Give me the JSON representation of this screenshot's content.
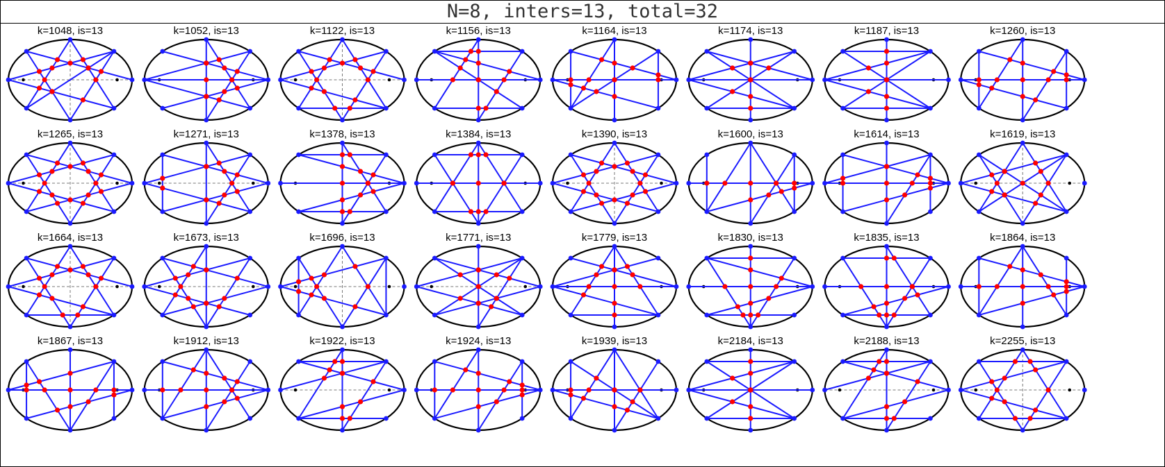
{
  "title": "N=8, inters=13, total=32",
  "panels": [
    {
      "label": "k=1048, is=13"
    },
    {
      "label": "k=1052, is=13"
    },
    {
      "label": "k=1122, is=13"
    },
    {
      "label": "k=1156, is=13"
    },
    {
      "label": "k=1164, is=13"
    },
    {
      "label": "k=1174, is=13"
    },
    {
      "label": "k=1187, is=13"
    },
    {
      "label": "k=1260, is=13"
    },
    {
      "label": "k=1265, is=13"
    },
    {
      "label": "k=1271, is=13"
    },
    {
      "label": "k=1378, is=13"
    },
    {
      "label": "k=1384, is=13"
    },
    {
      "label": "k=1390, is=13"
    },
    {
      "label": "k=1600, is=13"
    },
    {
      "label": "k=1614, is=13"
    },
    {
      "label": "k=1619, is=13"
    },
    {
      "label": "k=1664, is=13"
    },
    {
      "label": "k=1673, is=13"
    },
    {
      "label": "k=1696, is=13"
    },
    {
      "label": "k=1771, is=13"
    },
    {
      "label": "k=1779, is=13"
    },
    {
      "label": "k=1830, is=13"
    },
    {
      "label": "k=1835, is=13"
    },
    {
      "label": "k=1864, is=13"
    },
    {
      "label": "k=1867, is=13"
    },
    {
      "label": "k=1912, is=13"
    },
    {
      "label": "k=1922, is=13"
    },
    {
      "label": "k=1924, is=13"
    },
    {
      "label": "k=1939, is=13"
    },
    {
      "label": "k=2184, is=13"
    },
    {
      "label": "k=2188, is=13"
    },
    {
      "label": "k=2255, is=13"
    }
  ],
  "colors": {
    "ellipse": "#000000",
    "chord": "#1a1aff",
    "vertex": "#1a1aff",
    "intersection": "#ff0000",
    "axis": "#777777",
    "focus": "#000000"
  }
}
